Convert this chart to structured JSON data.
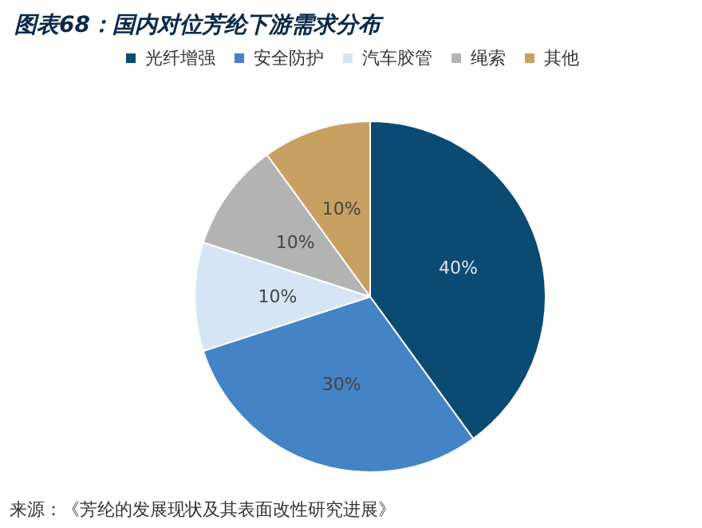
{
  "chart_data": {
    "type": "pie",
    "title": "图表68：国内对位芳纶下游需求分布",
    "categories": [
      "光纤增强",
      "安全防护",
      "汽车胶管",
      "绳索",
      "其他"
    ],
    "values": [
      40,
      30,
      10,
      10,
      10
    ],
    "colors": [
      "#0b4a72",
      "#4383c6",
      "#d5e5f5",
      "#b3b3b3",
      "#c8a062"
    ],
    "value_labels": [
      "40%",
      "30%",
      "10%",
      "10%",
      "10%"
    ],
    "legend": "top",
    "annotations": [
      "来源：《芳纶的发展现状及其表面改性研究进展》"
    ]
  }
}
